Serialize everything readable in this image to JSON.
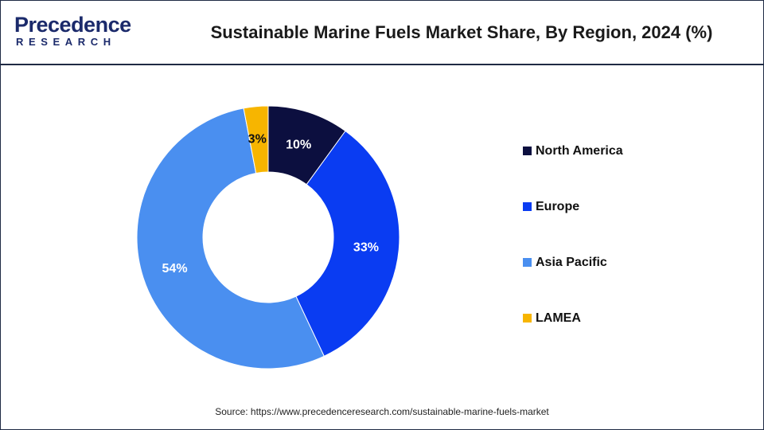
{
  "logo": {
    "line1": "Precedence",
    "line2": "RESEARCH"
  },
  "header": {
    "title": "Sustainable Marine Fuels Market Share, By Region, 2024 (%)"
  },
  "chart_data": {
    "type": "pie",
    "style": "donut",
    "title": "Sustainable Marine Fuels Market Share, By Region, 2024 (%)",
    "categories": [
      "North America",
      "Europe",
      "Asia Pacific",
      "LAMEA"
    ],
    "values": [
      10,
      33,
      54,
      3
    ],
    "value_labels": [
      "10%",
      "33%",
      "54%",
      "3%"
    ],
    "colors": [
      "#0c0f3f",
      "#0a3cf2",
      "#4a8ff0",
      "#f7b500"
    ],
    "label_colors": [
      "#ffffff",
      "#ffffff",
      "#ffffff",
      "#111111"
    ],
    "legend_position": "right"
  },
  "legend": {
    "items": [
      {
        "label": "North America"
      },
      {
        "label": "Europe"
      },
      {
        "label": "Asia Pacific"
      },
      {
        "label": "LAMEA"
      }
    ]
  },
  "footer": {
    "source": "Source: https://www.precedenceresearch.com/sustainable-marine-fuels-market"
  }
}
